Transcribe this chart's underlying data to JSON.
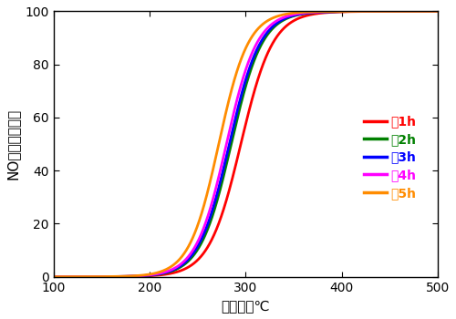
{
  "title": "",
  "xlabel": "温度　／℃",
  "ylabel": "NO転換率　／％",
  "xlim": [
    100,
    500
  ],
  "ylim": [
    0,
    100
  ],
  "xticks": [
    100,
    200,
    300,
    400,
    500
  ],
  "yticks": [
    0,
    20,
    40,
    60,
    80,
    100
  ],
  "series": [
    {
      "label": "：1h",
      "color": "#ff0000",
      "midpoint": 295,
      "k": 0.06
    },
    {
      "label": "：2h",
      "color": "#008000",
      "midpoint": 285,
      "k": 0.062
    },
    {
      "label": "：3h",
      "color": "#0000ff",
      "midpoint": 283,
      "k": 0.062
    },
    {
      "label": "：4h",
      "color": "#ff00ff",
      "midpoint": 280,
      "k": 0.063
    },
    {
      "label": "：5h",
      "color": "#ff8c00",
      "midpoint": 272,
      "k": 0.065
    }
  ],
  "legend_fontsize": 10,
  "axis_fontsize": 11,
  "tick_fontsize": 10,
  "line_width": 2.0,
  "background_color": "#ffffff"
}
